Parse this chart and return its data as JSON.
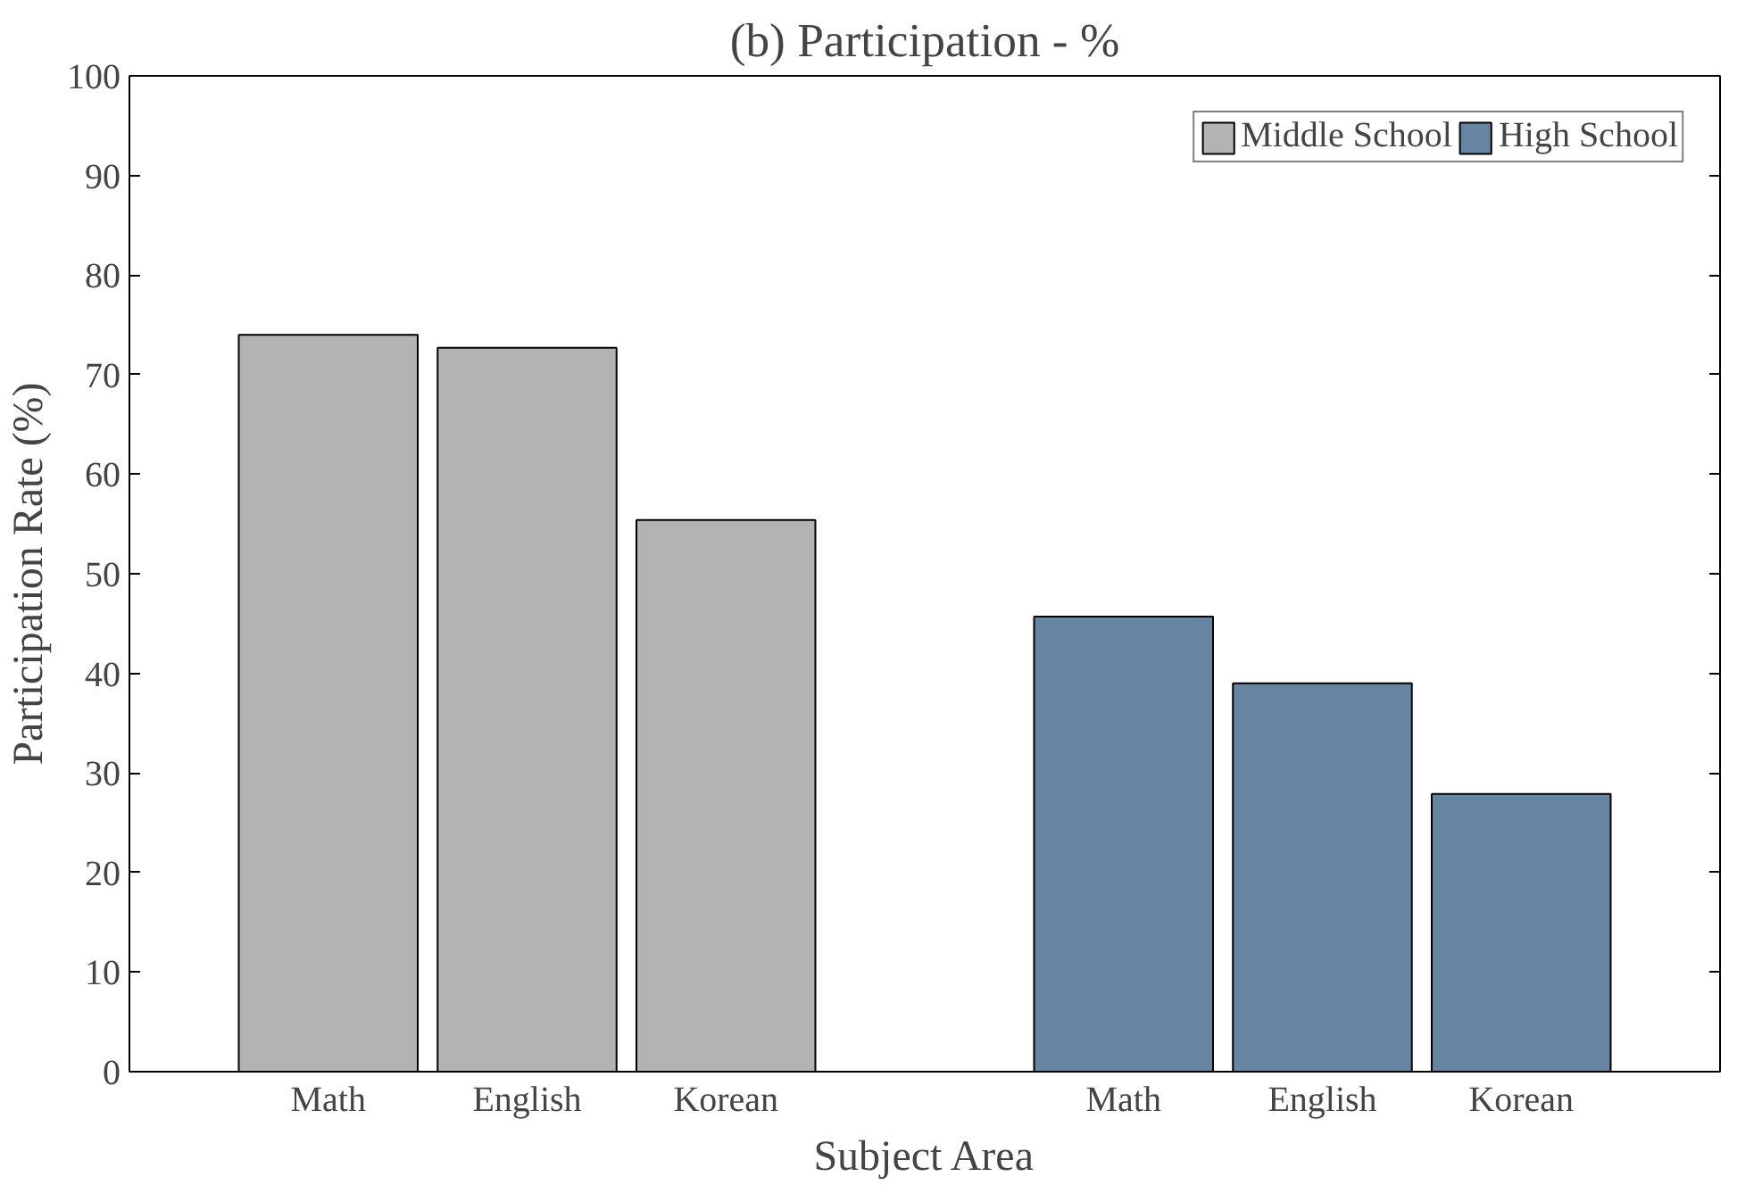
{
  "chart_data": {
    "type": "bar",
    "title": "(b) Participation - %",
    "xlabel": "Subject Area",
    "ylabel": "Participation Rate (%)",
    "categories": [
      "Math",
      "English",
      "Korean",
      null,
      "Math",
      "English",
      "Korean"
    ],
    "series": [
      {
        "name": "Middle School",
        "color": "#b3b3b3",
        "values": [
          74.0,
          72.7,
          55.4,
          null,
          null,
          null,
          null
        ]
      },
      {
        "name": "High School",
        "color": "#6685a3",
        "values": [
          null,
          null,
          null,
          null,
          45.7,
          39.0,
          27.9
        ]
      }
    ],
    "ylim": [
      0,
      100
    ],
    "yticks": [
      0,
      10,
      20,
      30,
      40,
      50,
      60,
      70,
      80,
      90,
      100
    ],
    "legend": "top right",
    "grid": false
  }
}
